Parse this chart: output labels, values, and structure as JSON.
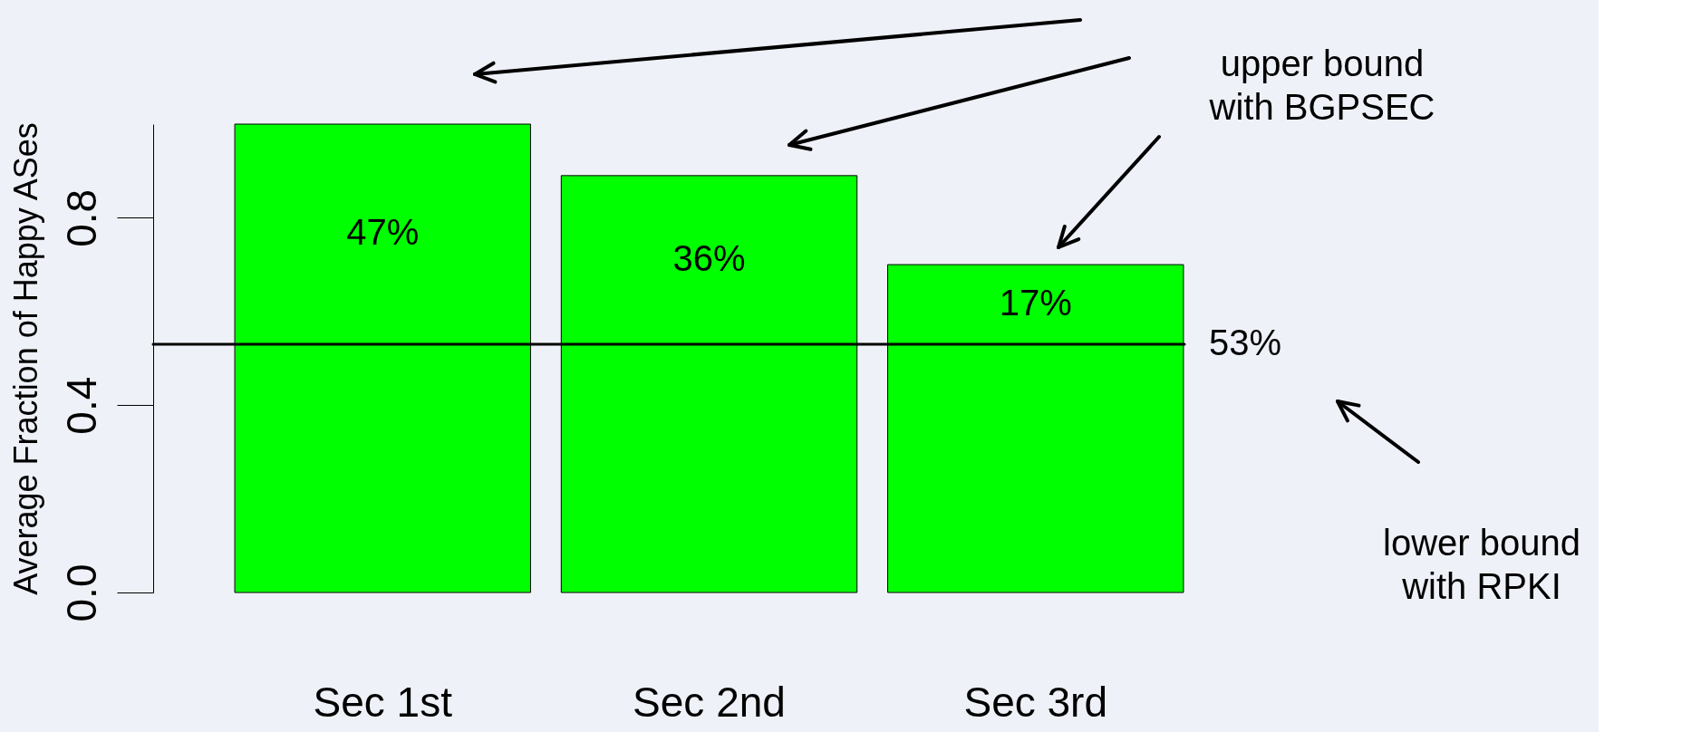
{
  "chart_data": {
    "type": "bar",
    "ylabel": "Average Fraction of Happy ASes",
    "categories": [
      "Sec 1st",
      "Sec 2nd",
      "Sec 3rd"
    ],
    "values": [
      1.0,
      0.89,
      0.7
    ],
    "color": "#00ff00",
    "ylim": [
      0,
      1
    ],
    "yticks": [
      {
        "value": 0,
        "label": "0.0"
      },
      {
        "value": 0.4,
        "label": "0.4"
      },
      {
        "value": 0.8,
        "label": "0.8"
      }
    ],
    "ref_lines": [
      {
        "axis": "y",
        "value": 0.53,
        "label": "53%",
        "color": "#000000"
      }
    ],
    "annotations": [
      "47%",
      "36%",
      "17%",
      "upper bound\nwith BGPSEC",
      "lower bound\nwith RPKI"
    ]
  }
}
